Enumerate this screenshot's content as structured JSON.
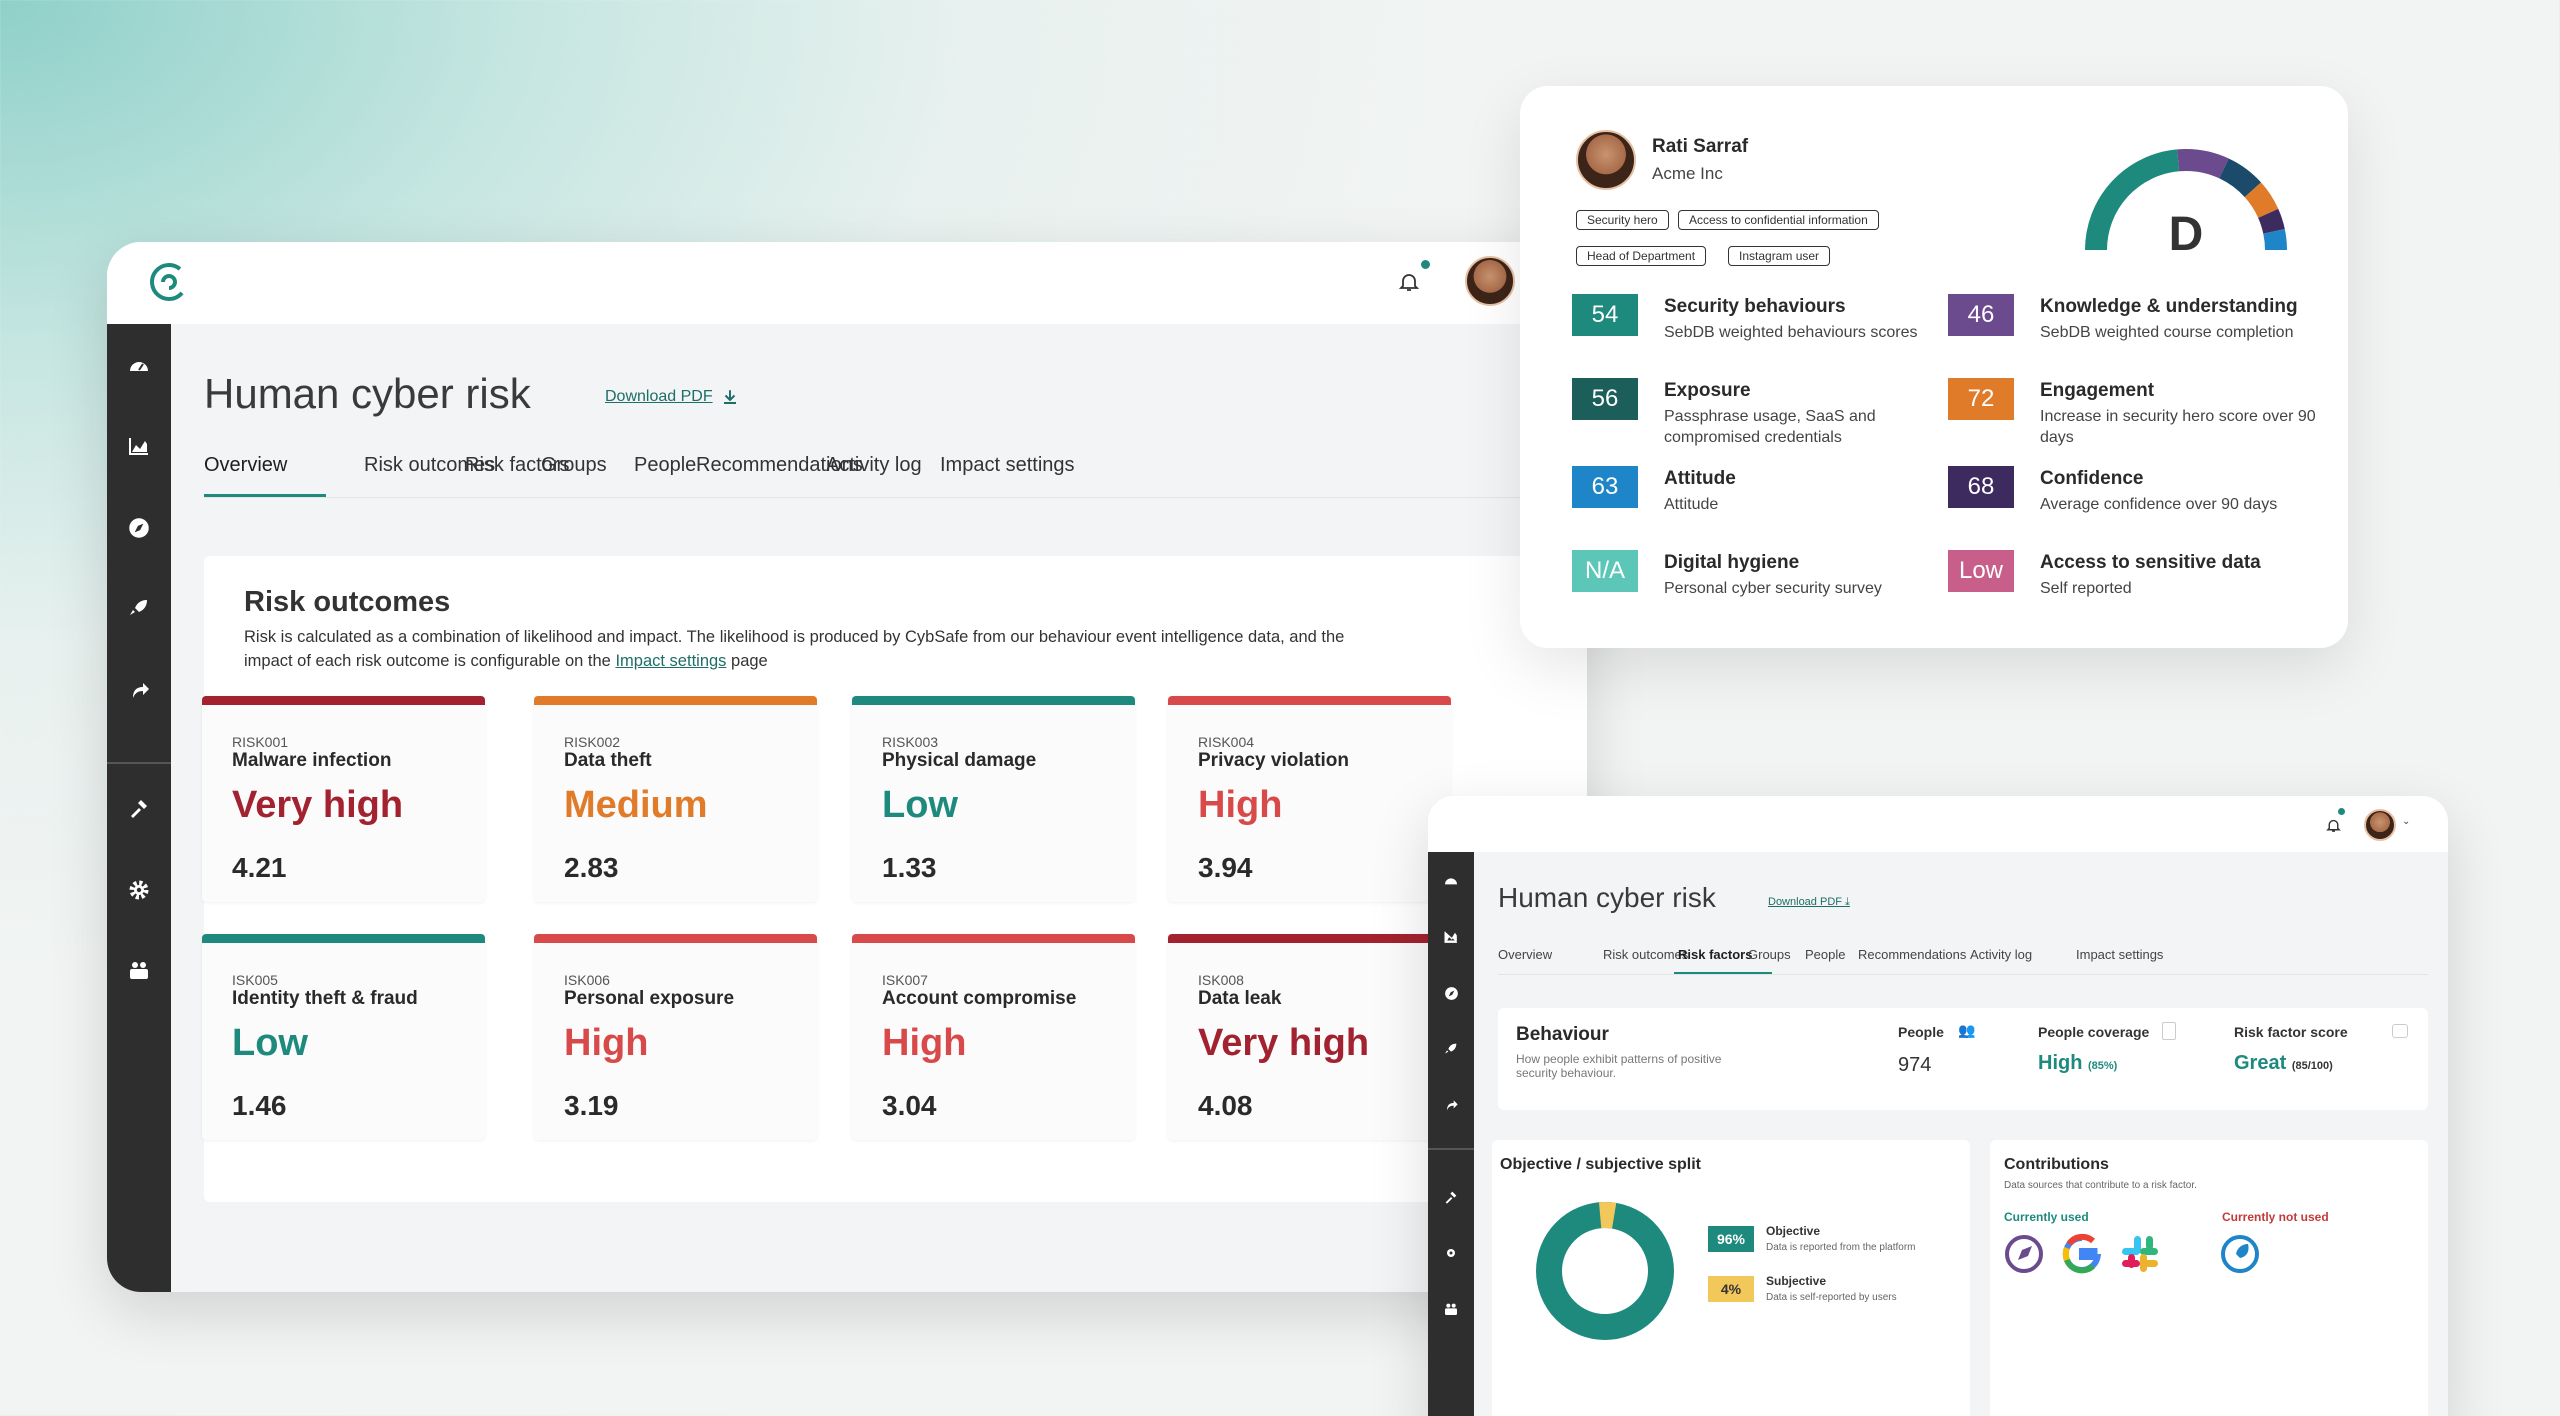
{
  "main_window": {
    "title": "Human cyber risk",
    "download_label": "Download PDF",
    "tabs": [
      {
        "label": "Overview",
        "selected": true
      },
      {
        "label": "Risk outcomes"
      },
      {
        "label": "Risk factors"
      },
      {
        "label": "Groups"
      },
      {
        "label": "People"
      },
      {
        "label": "Recommendations"
      },
      {
        "label": "Activity log"
      },
      {
        "label": "Impact settings"
      }
    ],
    "risk_outcomes": {
      "heading": "Risk outcomes",
      "description_1": "Risk is calculated as a combination of likelihood and impact. The likelihood is produced by CybSafe from our behaviour event intelligence data, and the",
      "description_2_pre": "impact of each risk outcome is configurable on the",
      "description_link": "Impact settings",
      "description_2_post": "page",
      "cards": [
        {
          "id": "RISK001",
          "name": "Malware infection",
          "level": "Very high",
          "value": "4.21",
          "color": "#a3222f"
        },
        {
          "id": "RISK002",
          "name": "Data theft",
          "level": "Medium",
          "value": "2.83",
          "color": "#e07b2a"
        },
        {
          "id": "RISK003",
          "name": "Physical damage",
          "level": "Low",
          "value": "1.33",
          "color": "#1e8a7e"
        },
        {
          "id": "RISK004",
          "name": "Privacy violation",
          "level": "High",
          "value": "3.94",
          "color": "#d84a4a"
        },
        {
          "id": "ISK005",
          "name": "Identity theft & fraud",
          "level": "Low",
          "value": "1.46",
          "color": "#1e8a7e"
        },
        {
          "id": "ISK006",
          "name": "Personal exposure",
          "level": "High",
          "value": "3.19",
          "color": "#d84a4a"
        },
        {
          "id": "ISK007",
          "name": "Account compromise",
          "level": "High",
          "value": "3.04",
          "color": "#d84a4a"
        },
        {
          "id": "ISK008",
          "name": "Data leak",
          "level": "Very high",
          "value": "4.08",
          "color": "#a3222f"
        }
      ]
    }
  },
  "profile_card": {
    "name": "Rati Sarraf",
    "company": "Acme Inc",
    "tags": [
      "Security hero",
      "Access to confidential information",
      "Head of Department",
      "Instagram user"
    ],
    "grade": "D",
    "metrics": [
      {
        "score": "54",
        "title": "Security behaviours",
        "subtitle": "SebDB weighted behaviours scores",
        "color": "#1e8a7e"
      },
      {
        "score": "46",
        "title": "Knowledge & understanding",
        "subtitle": "SebDB weighted course completion",
        "color": "#6b4a8e"
      },
      {
        "score": "56",
        "title": "Exposure",
        "subtitle": "Passphrase usage, SaaS and compromised credentials",
        "color": "#1b5e5a"
      },
      {
        "score": "72",
        "title": "Engagement",
        "subtitle": "Increase in security hero score over 90 days",
        "color": "#e07b2a"
      },
      {
        "score": "63",
        "title": "Attitude",
        "subtitle": "Attitude",
        "color": "#1e86c8"
      },
      {
        "score": "68",
        "title": "Confidence",
        "subtitle": "Average confidence over 90 days",
        "color": "#3d2a5e"
      },
      {
        "score": "N/A",
        "title": "Digital hygiene",
        "subtitle": "Personal cyber security survey",
        "color": "#5cc7b9"
      },
      {
        "score": "Low",
        "title": "Access to sensitive data",
        "subtitle": "Self reported",
        "color": "#c75f8a"
      }
    ]
  },
  "second_window": {
    "title": "Human cyber risk",
    "download_label": "Download PDF",
    "tabs": [
      {
        "label": "Overview"
      },
      {
        "label": "Risk outcomes"
      },
      {
        "label": "Risk factors",
        "selected": true
      },
      {
        "label": "Groups"
      },
      {
        "label": "People"
      },
      {
        "label": "Recommendations"
      },
      {
        "label": "Activity log"
      },
      {
        "label": "Impact settings"
      }
    ],
    "behaviour": {
      "title": "Behaviour",
      "desc_1": "How people exhibit patterns of positive",
      "desc_2": "security behaviour.",
      "people_label": "People",
      "people_value": "974",
      "coverage_label": "People coverage",
      "coverage_value": "High",
      "coverage_pct": "(85%)",
      "score_label": "Risk factor score",
      "score_value": "Great",
      "score_detail": "(85/100)"
    },
    "split": {
      "title": "Objective / subjective split",
      "objective_pct": "96%",
      "objective_label": "Objective",
      "objective_desc": "Data is reported from the platform",
      "subjective_pct": "4%",
      "subjective_label": "Subjective",
      "subjective_desc": "Data is self-reported by users",
      "objective_fraction": 0.96
    },
    "contributions": {
      "title": "Contributions",
      "desc": "Data sources that contribute to a risk factor.",
      "used_label": "Currently used",
      "not_used_label": "Currently not used"
    }
  },
  "colors": {
    "accent": "#1e8a7e",
    "sidebar": "#2e2e2e"
  }
}
